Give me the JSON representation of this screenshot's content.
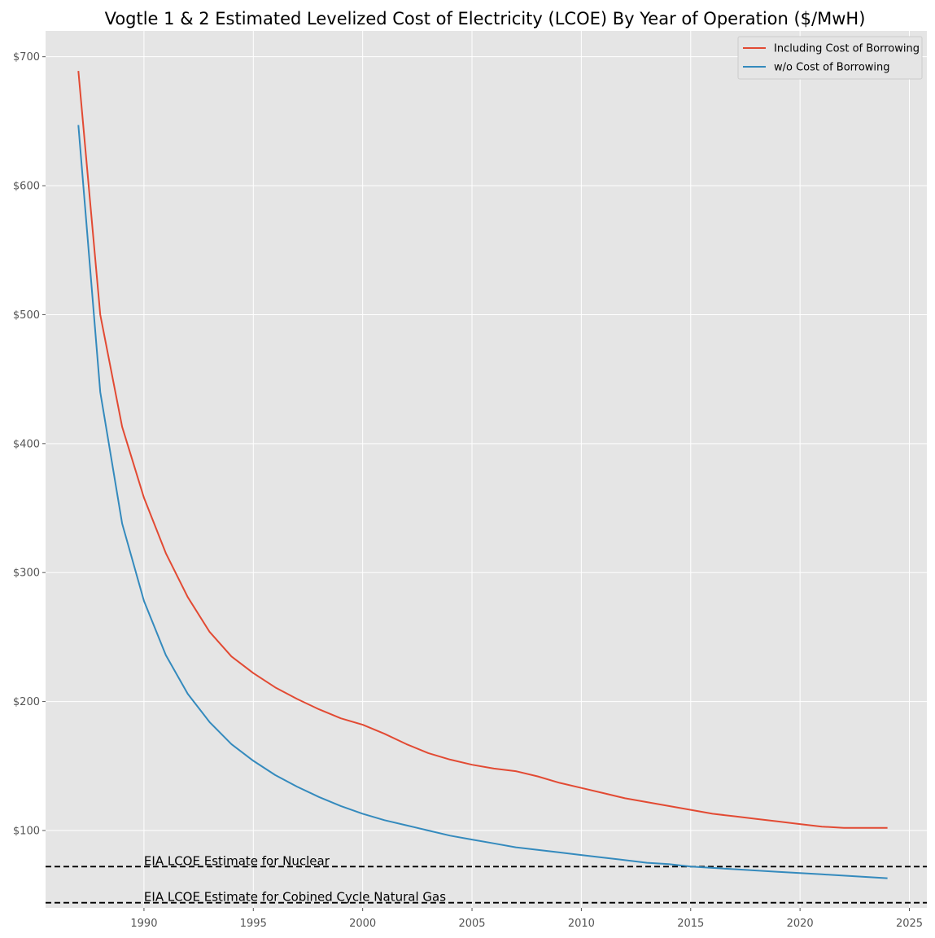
{
  "chart_data": {
    "type": "line",
    "title": "Vogtle 1 & 2 Estimated Levelized Cost of Electricity (LCOE) By Year of Operation ($/MwH)",
    "xlabel": "",
    "ylabel": "",
    "xlim": [
      1985.5,
      2025.8
    ],
    "ylim": [
      40,
      720
    ],
    "x_ticks": [
      1990,
      1995,
      2000,
      2005,
      2010,
      2015,
      2020,
      2025
    ],
    "y_ticks": [
      100,
      200,
      300,
      400,
      500,
      600,
      700
    ],
    "y_tick_prefix": "$",
    "grid": true,
    "legend_position": "top-right",
    "x": [
      1987,
      1988,
      1989,
      1990,
      1991,
      1992,
      1993,
      1994,
      1995,
      1996,
      1997,
      1998,
      1999,
      2000,
      2001,
      2002,
      2003,
      2004,
      2005,
      2006,
      2007,
      2008,
      2009,
      2010,
      2011,
      2012,
      2013,
      2014,
      2015,
      2016,
      2017,
      2018,
      2019,
      2020,
      2021,
      2022,
      2023,
      2024
    ],
    "series": [
      {
        "name": "Including Cost of Borrowing",
        "color": "#E24A33",
        "values": [
          689,
          500,
          413,
          358,
          315,
          281,
          254,
          235,
          222,
          211,
          202,
          194,
          187,
          182,
          175,
          167,
          160,
          155,
          151,
          148,
          146,
          142,
          137,
          133,
          129,
          125,
          122,
          119,
          116,
          113,
          111,
          109,
          107,
          105,
          103,
          102,
          102,
          102
        ]
      },
      {
        "name": "w/o Cost of Borrowing",
        "color": "#348ABD",
        "values": [
          647,
          440,
          338,
          278,
          236,
          206,
          184,
          167,
          154,
          143,
          134,
          126,
          119,
          113,
          108,
          104,
          100,
          96,
          93,
          90,
          87,
          85,
          83,
          81,
          79,
          77,
          75,
          74,
          72,
          71,
          70,
          69,
          68,
          67,
          66,
          65,
          64,
          63
        ]
      }
    ],
    "reference_lines": [
      {
        "label": "EIA LCOE Estimate for Nuclear",
        "value": 72
      },
      {
        "label": "EIA LCOE Estimate for Cobined Cycle Natural Gas",
        "value": 44
      }
    ],
    "annotation_x": 1990
  }
}
